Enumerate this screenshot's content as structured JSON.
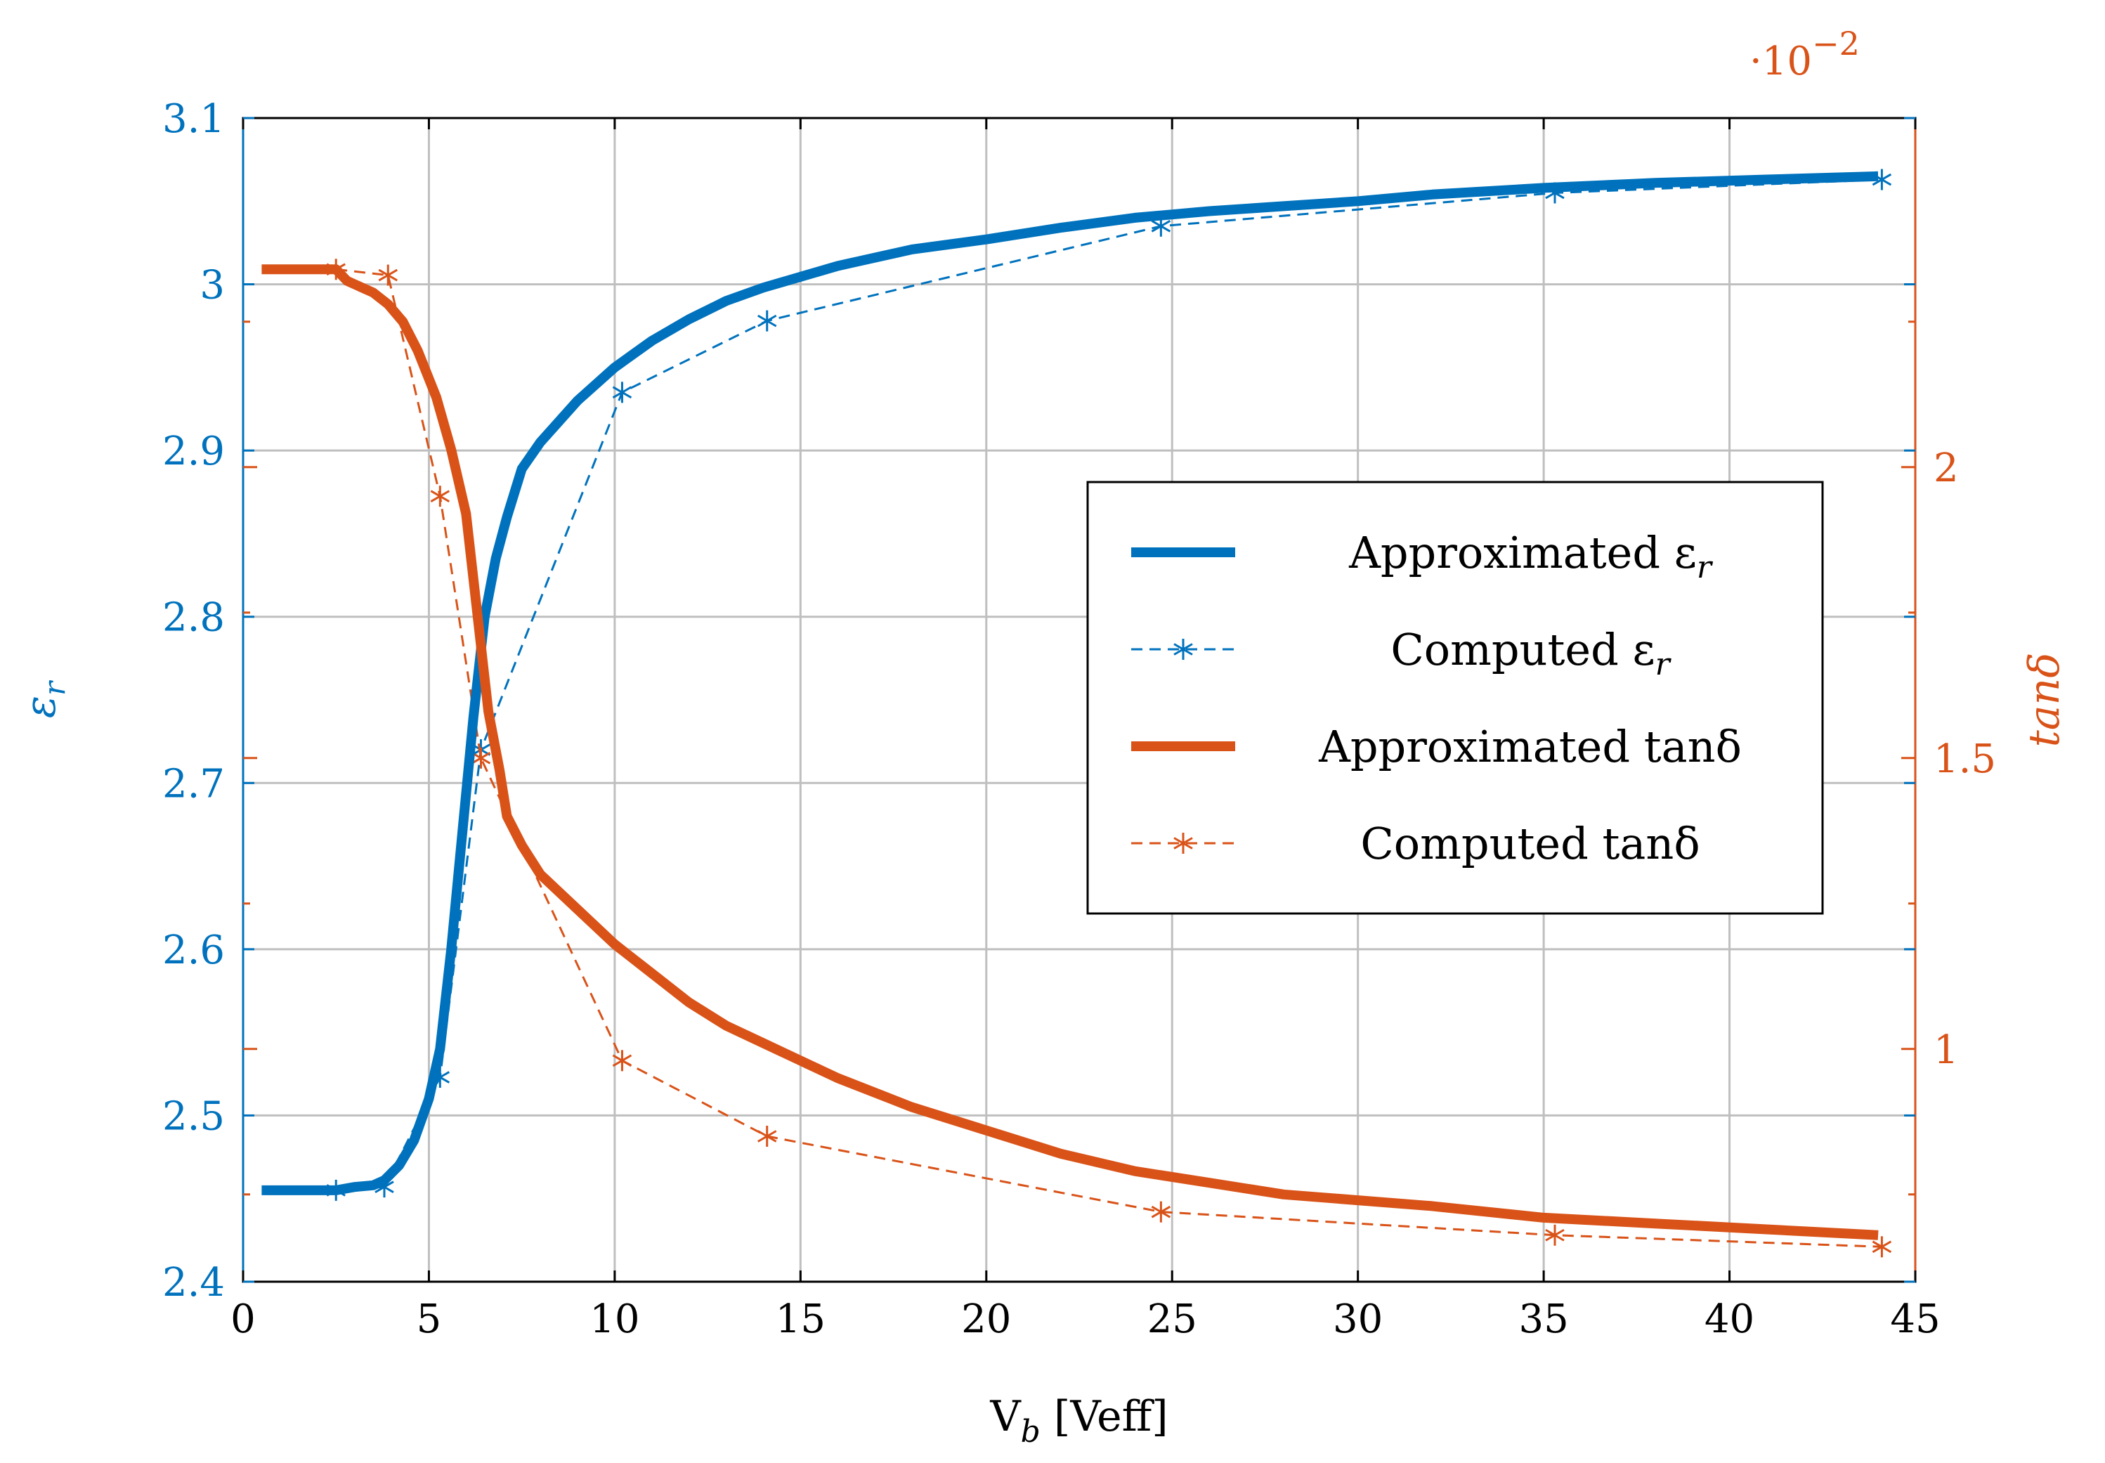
{
  "chart_data": {
    "type": "line",
    "xlabel": "V",
    "xlabel_sub": "b",
    "xlabel_unit": "[Veff]",
    "xlim": [
      0,
      45
    ],
    "x_ticks": [
      0,
      5,
      10,
      15,
      20,
      25,
      30,
      35,
      40,
      45
    ],
    "x_tick_labels": [
      "0",
      "5",
      "10",
      "15",
      "20",
      "25",
      "30",
      "35",
      "40",
      "45"
    ],
    "y_left": {
      "label": "ε",
      "label_sub": "r",
      "lim": [
        2.4,
        3.1
      ],
      "ticks": [
        2.4,
        2.5,
        2.6,
        2.7,
        2.8,
        2.9,
        3.0,
        3.1
      ],
      "tick_labels": [
        "2.4",
        "2.5",
        "2.6",
        "2.7",
        "2.8",
        "2.9",
        "3",
        "3.1"
      ],
      "color": "#0072BD"
    },
    "y_right": {
      "label": "tanδ",
      "lim": [
        0.6,
        2.6
      ],
      "ticks": [
        1.0,
        1.5,
        2.0
      ],
      "tick_labels": [
        "1",
        "1.5",
        "2"
      ],
      "minor_ticks": [
        0.75,
        1.25,
        1.75,
        2.25
      ],
      "scale_label_base": "·10",
      "scale_label_exp": "−2",
      "color": "#D95319"
    },
    "grid": true,
    "legend_position": "center-right",
    "series": [
      {
        "name": "Approximated εr",
        "legend_label": "Approximated ε",
        "legend_sub": "r",
        "axis": "left",
        "style": "solid-thick",
        "color": "#0072BD",
        "x": [
          0.5,
          1,
          2,
          2.5,
          3,
          3.5,
          3.8,
          4.2,
          4.6,
          5.0,
          5.3,
          5.6,
          5.9,
          6.2,
          6.5,
          6.8,
          7.1,
          7.5,
          8,
          9,
          10,
          11,
          12,
          13,
          14,
          16,
          18,
          20,
          22,
          24,
          26,
          28,
          30,
          32,
          35,
          38,
          41,
          44
        ],
        "y": [
          2.455,
          2.455,
          2.455,
          2.455,
          2.457,
          2.458,
          2.461,
          2.47,
          2.485,
          2.51,
          2.54,
          2.6,
          2.67,
          2.74,
          2.8,
          2.835,
          2.86,
          2.889,
          2.905,
          2.93,
          2.95,
          2.966,
          2.979,
          2.99,
          2.998,
          3.011,
          3.021,
          3.027,
          3.034,
          3.04,
          3.044,
          3.047,
          3.05,
          3.054,
          3.058,
          3.061,
          3.063,
          3.065
        ]
      },
      {
        "name": "Computed εr",
        "legend_label": "Computed ε",
        "legend_sub": "r",
        "axis": "left",
        "style": "dashed-star",
        "color": "#0072BD",
        "x": [
          2.5,
          3.8,
          5.3,
          6.4,
          10.2,
          14.1,
          24.7,
          35.3,
          44.1
        ],
        "y": [
          2.455,
          2.457,
          2.523,
          2.72,
          2.935,
          2.978,
          3.035,
          3.055,
          3.063
        ]
      },
      {
        "name": "Approximated tanδ",
        "legend_label": "Approximated tanδ",
        "axis": "right",
        "style": "solid-thick",
        "color": "#D95319",
        "x": [
          0.5,
          1,
          2,
          2.5,
          2.8,
          3.5,
          3.9,
          4.3,
          4.7,
          5.2,
          5.6,
          6.0,
          6.3,
          6.6,
          6.9,
          7.1,
          7.5,
          8,
          9,
          10,
          11,
          12,
          13,
          14,
          16,
          18,
          20,
          22,
          24,
          26,
          28,
          30,
          32,
          35,
          38,
          41,
          44
        ],
        "y": [
          2.34,
          2.34,
          2.34,
          2.34,
          2.32,
          2.3,
          2.28,
          2.25,
          2.2,
          2.12,
          2.03,
          1.92,
          1.75,
          1.58,
          1.48,
          1.4,
          1.35,
          1.3,
          1.24,
          1.18,
          1.13,
          1.08,
          1.04,
          1.01,
          0.95,
          0.9,
          0.86,
          0.82,
          0.79,
          0.77,
          0.75,
          0.74,
          0.73,
          0.71,
          0.7,
          0.69,
          0.68
        ]
      },
      {
        "name": "Computed tanδ",
        "legend_label": "Computed tanδ",
        "axis": "right",
        "style": "dashed-star",
        "color": "#D95319",
        "x": [
          2.5,
          3.9,
          5.3,
          6.4,
          10.2,
          14.1,
          24.7,
          35.3,
          44.1
        ],
        "y": [
          2.34,
          2.33,
          1.95,
          1.5,
          0.98,
          0.85,
          0.72,
          0.68,
          0.66
        ]
      }
    ]
  }
}
